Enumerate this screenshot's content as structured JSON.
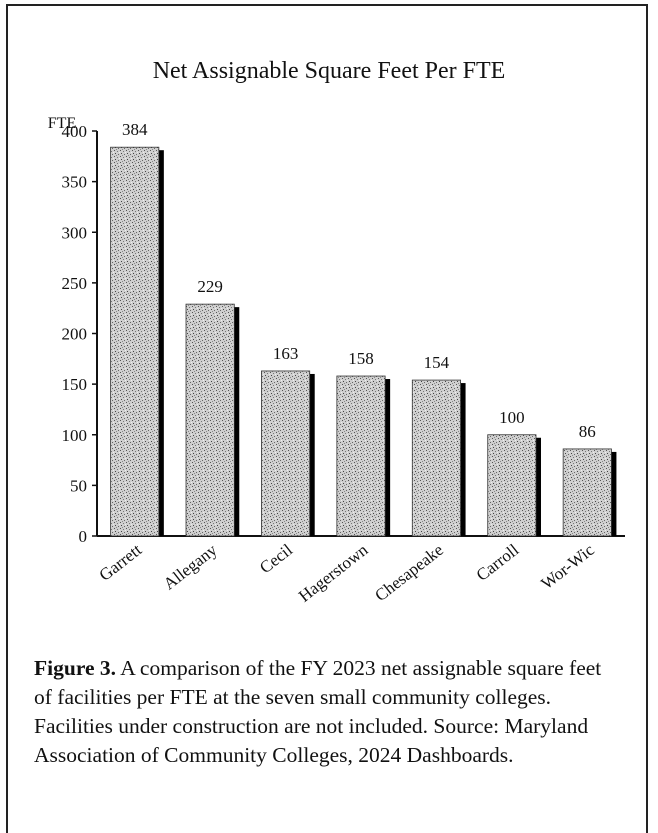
{
  "chart_data": {
    "type": "bar",
    "title": "Net Assignable Square Feet Per FTE",
    "y_axis_label": "FTE",
    "categories": [
      "Garrett",
      "Allegany",
      "Cecil",
      "Hagerstown",
      "Chesapeake",
      "Carroll",
      "Wor-Wic"
    ],
    "values": [
      384,
      229,
      163,
      158,
      154,
      100,
      86
    ],
    "color": "#bdbdbd",
    "ylim": [
      0,
      400
    ],
    "yticks": [
      0,
      50,
      100,
      150,
      200,
      250,
      300,
      350,
      400
    ],
    "grid": false
  },
  "caption": {
    "label": "Figure 3.",
    "text": "A comparison of the FY 2023 net assignable square feet of facilities per FTE at the seven small community colleges. Facilities under construction are not included. Source: Maryland Association of Community Colleges, 2024 Dashboards."
  }
}
